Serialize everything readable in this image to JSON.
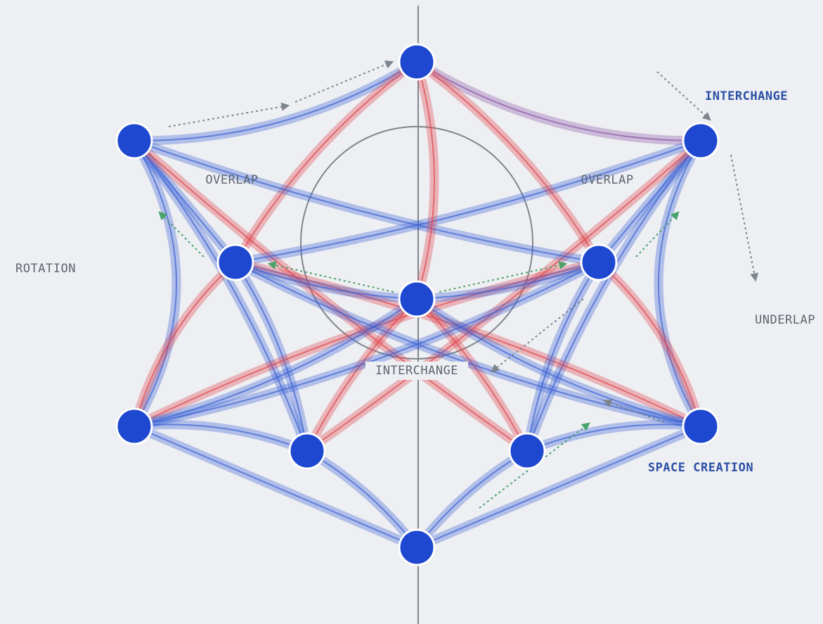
{
  "labels": [
    "INTERCHANGE",
    "OVERLAP",
    "OVERLAP",
    "ROTATION",
    "UNDERLAP",
    "INTERCHANGE",
    "SPACE CREATION"
  ]
}
